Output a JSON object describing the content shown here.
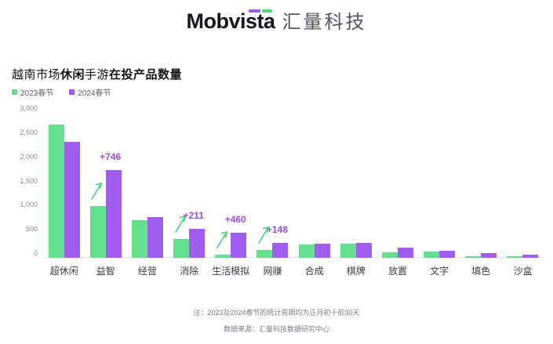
{
  "logo": {
    "brand": "Mobvista",
    "brand_cn": "汇量科技",
    "accent_purple": "#9b5be8",
    "accent_green": "#4fd586"
  },
  "title_segments": [
    {
      "text": "越南市场",
      "bold": false
    },
    {
      "text": "休闲",
      "bold": true
    },
    {
      "text": "手游",
      "bold": false
    },
    {
      "text": "在投产品数量",
      "bold": true
    }
  ],
  "legend": [
    {
      "label": "2023春节",
      "color": "#62e08e"
    },
    {
      "label": "2024春节",
      "color": "#a05cef"
    }
  ],
  "chart_data": {
    "type": "bar",
    "title": "越南市场休闲手游在投产品数量",
    "categories": [
      "超休闲",
      "益智",
      "经营",
      "消除",
      "生活模拟",
      "网赚",
      "合成",
      "棋牌",
      "放置",
      "文字",
      "填色",
      "沙盒"
    ],
    "series": [
      {
        "name": "2023春节",
        "color": "#62e08e",
        "values": [
          2760,
          1070,
          780,
          395,
          60,
          165,
          270,
          285,
          110,
          130,
          35,
          25
        ]
      },
      {
        "name": "2024春节",
        "color": "#a05cef",
        "values": [
          2400,
          1816,
          840,
          606,
          520,
          313,
          300,
          315,
          215,
          145,
          90,
          70
        ]
      }
    ],
    "annotations": [
      "",
      "+746",
      "",
      "+211",
      "+460",
      "+148",
      "",
      "",
      "",
      "",
      "",
      ""
    ],
    "annotation_color": "#9b4fe0",
    "arrow_color": "#45d37e",
    "yticks": [
      "0",
      "500",
      "1,000",
      "1,500",
      "2,000",
      "2,500",
      "3,000"
    ],
    "ytick_values": [
      0,
      500,
      1000,
      1500,
      2000,
      2500,
      3000
    ],
    "ylim": [
      0,
      3000
    ],
    "grid": false,
    "legend_position": "top-left",
    "xlabel": "",
    "ylabel": ""
  },
  "footnotes": {
    "note": "注：2023及2024春节的统计周期均为正月初十前30天",
    "source": "数据来源：汇量科技数据研究中心"
  }
}
